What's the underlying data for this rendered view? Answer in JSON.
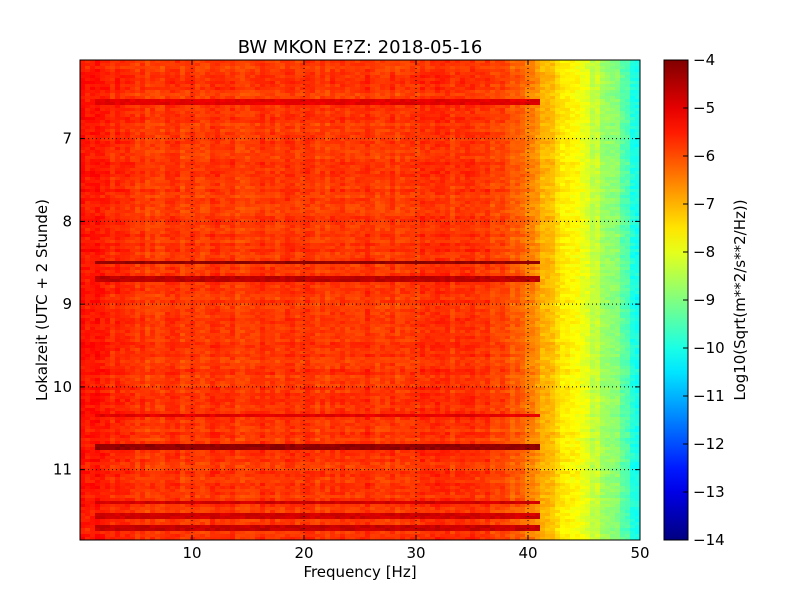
{
  "chart_data": {
    "type": "heatmap",
    "title": "BW MKON E?Z: 2018-05-16",
    "xlabel": "Frequency [Hz]",
    "ylabel": "Lokalzeit (UTC + 2 Stunde)",
    "xlim": [
      0,
      50
    ],
    "ylim": [
      11.85,
      6.05
    ],
    "y_inverted": true,
    "xticks": [
      10,
      20,
      30,
      40,
      50
    ],
    "yticks": [
      7,
      8,
      9,
      10,
      11
    ],
    "grid": true,
    "colormap": "jet",
    "colorbar": {
      "label": "Log10(Sqrt(m**2/s**2/Hz))",
      "range": [
        -14,
        -4
      ],
      "ticks": [
        -4,
        -5,
        -6,
        -7,
        -8,
        -9,
        -10,
        -11,
        -12,
        -13,
        -14
      ]
    },
    "frequency_profile": [
      {
        "freq": 0,
        "value": -5.4
      },
      {
        "freq": 5,
        "value": -5.8
      },
      {
        "freq": 20,
        "value": -5.8
      },
      {
        "freq": 35,
        "value": -5.7
      },
      {
        "freq": 39,
        "value": -6.1
      },
      {
        "freq": 42,
        "value": -7.2
      },
      {
        "freq": 45,
        "value": -8.0
      },
      {
        "freq": 48,
        "value": -9.0
      },
      {
        "freq": 50,
        "value": -10.3
      }
    ],
    "high_energy_bands": [
      {
        "time": 6.55,
        "value": -5.0
      },
      {
        "time": 8.5,
        "value": -4.2
      },
      {
        "time": 8.7,
        "value": -4.6
      },
      {
        "time": 10.35,
        "value": -5.0
      },
      {
        "time": 10.73,
        "value": -4.2
      },
      {
        "time": 11.4,
        "value": -4.8
      },
      {
        "time": 11.55,
        "value": -4.8
      },
      {
        "time": 11.7,
        "value": -4.7
      }
    ]
  }
}
